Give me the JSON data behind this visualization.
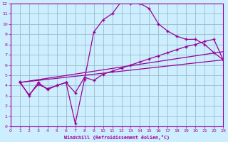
{
  "bg_color": "#cceeff",
  "plot_bg_color": "#cceeff",
  "line_color": "#990099",
  "grid_color": "#99bbcc",
  "xlabel": "Windchill (Refroidissement éolien,°C)",
  "xlabel_color": "#990099",
  "tick_color": "#990099",
  "xlim": [
    0,
    23
  ],
  "ylim": [
    0,
    12
  ],
  "xticks": [
    0,
    1,
    2,
    3,
    4,
    5,
    6,
    7,
    8,
    9,
    10,
    11,
    12,
    13,
    14,
    15,
    16,
    17,
    18,
    19,
    20,
    21,
    22,
    23
  ],
  "yticks": [
    0,
    1,
    2,
    3,
    4,
    5,
    6,
    7,
    8,
    9,
    10,
    11,
    12
  ],
  "line1_x": [
    1,
    2,
    3,
    4,
    5,
    6,
    7,
    8,
    9,
    10,
    11,
    12,
    13,
    14,
    15,
    16,
    17,
    18,
    19,
    20,
    21,
    22,
    23
  ],
  "line1_y": [
    4.4,
    3.0,
    4.3,
    3.6,
    4.0,
    4.3,
    0.3,
    4.6,
    9.2,
    10.4,
    11.0,
    12.2,
    12.0,
    12.0,
    11.5,
    10.0,
    9.3,
    8.8,
    8.5,
    8.5,
    8.0,
    7.2,
    6.5
  ],
  "line2_x": [
    1,
    2,
    3,
    4,
    5,
    6,
    7,
    8,
    9,
    10,
    11,
    12,
    13,
    14,
    15,
    16,
    17,
    18,
    19,
    20,
    21,
    22,
    23
  ],
  "line2_y": [
    4.3,
    3.1,
    4.1,
    3.7,
    4.0,
    4.3,
    3.3,
    4.8,
    4.5,
    5.1,
    5.4,
    5.7,
    6.0,
    6.3,
    6.6,
    6.9,
    7.2,
    7.5,
    7.8,
    8.0,
    8.3,
    8.5,
    6.5
  ],
  "line3_x": [
    1,
    23
  ],
  "line3_y": [
    4.3,
    7.3
  ],
  "line4_x": [
    1,
    23
  ],
  "line4_y": [
    4.3,
    6.5
  ]
}
